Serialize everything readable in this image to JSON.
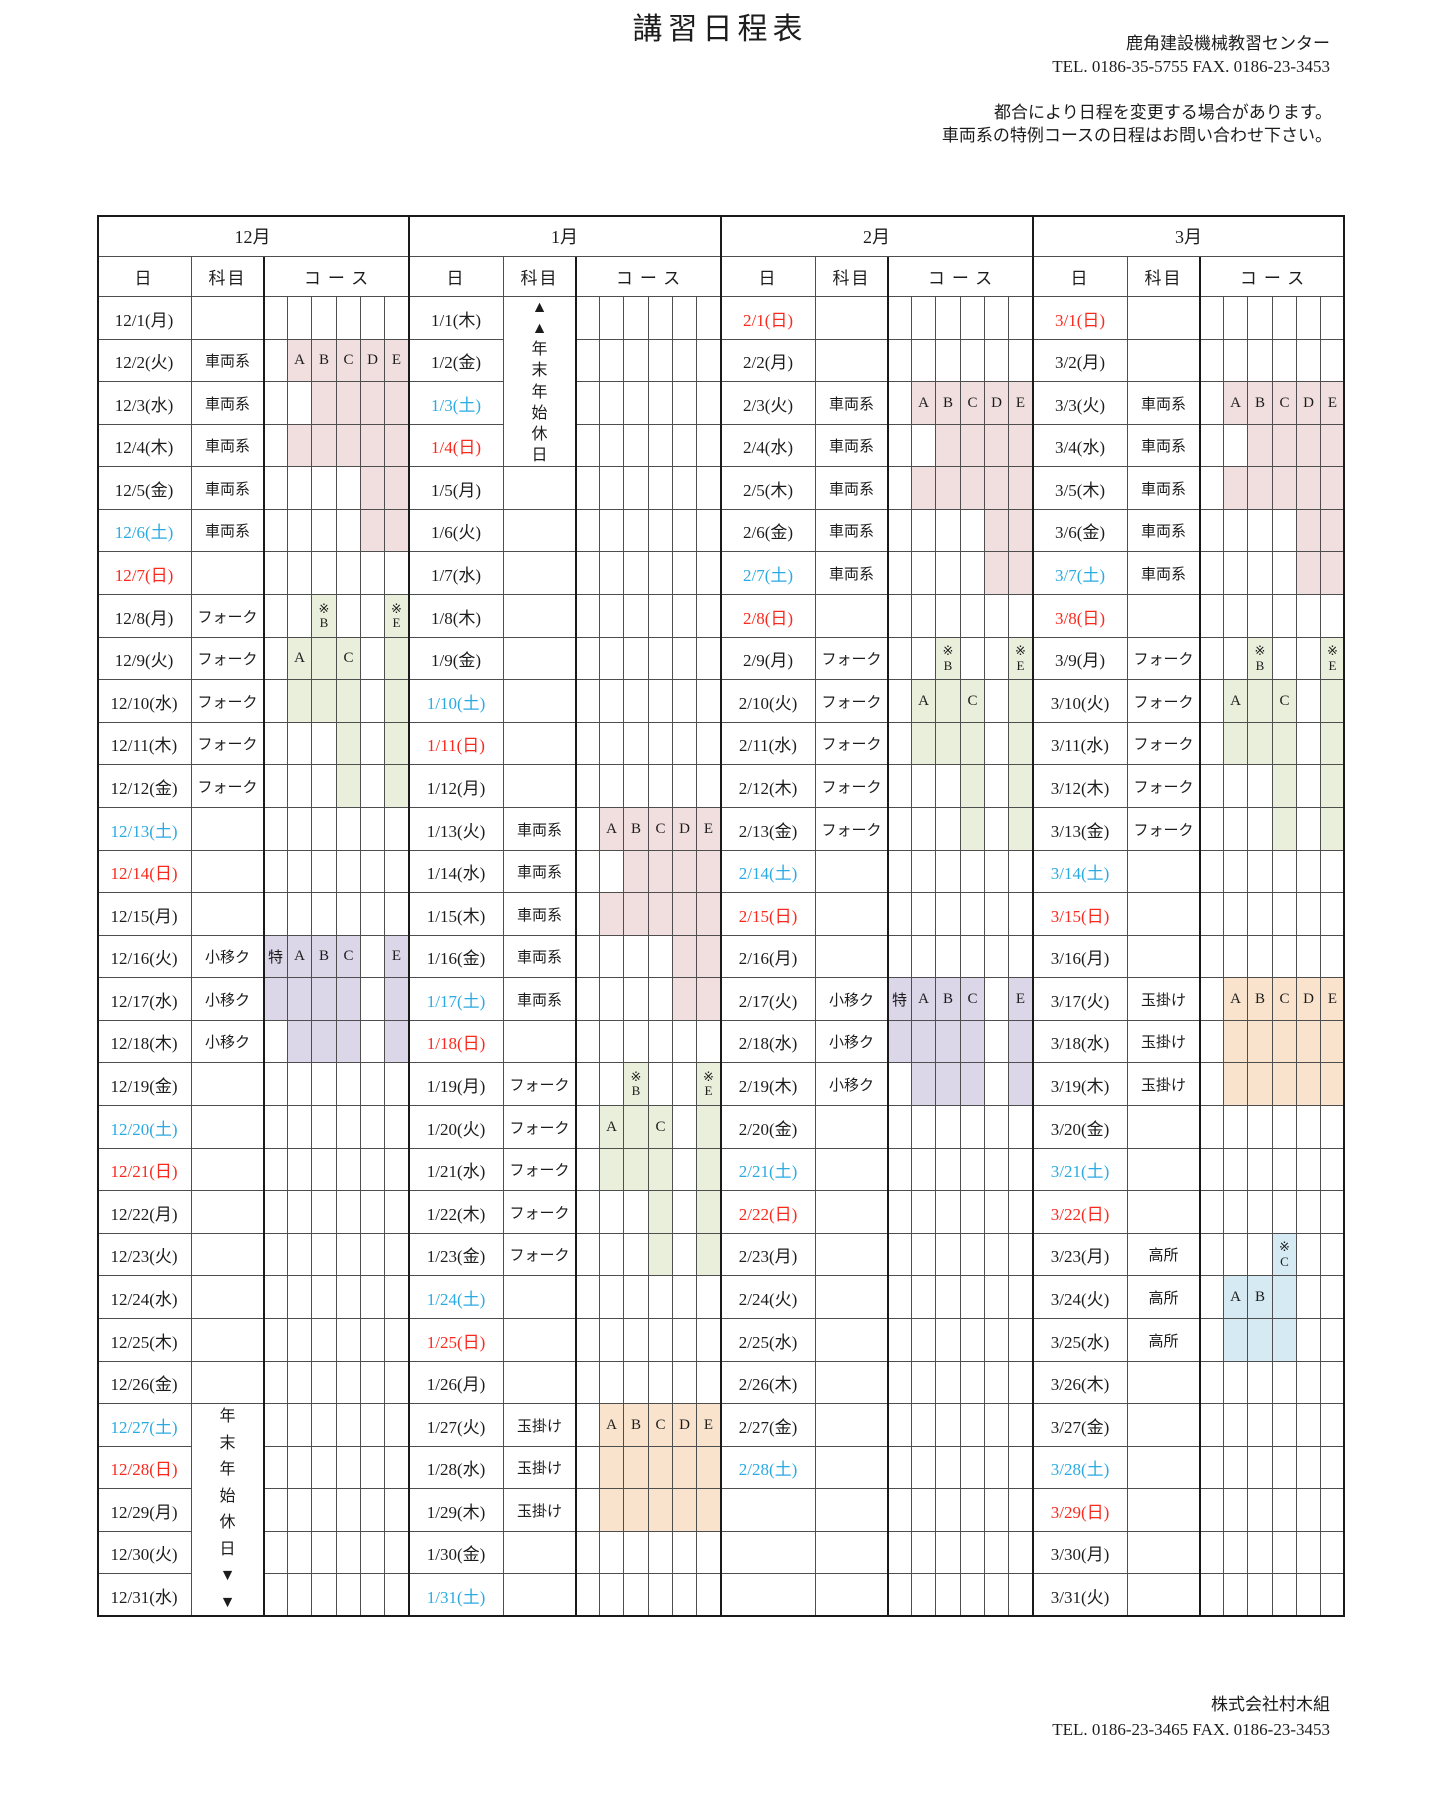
{
  "page": {
    "title": "講習日程表",
    "center": {
      "name": "鹿角建設機械教習センター",
      "tel": "TEL. 0186-35-5755  FAX. 0186-23-3453"
    },
    "notes": [
      "都合により日程を変更する場合があります。",
      "車両系の特例コースの日程はお問い合わせ下さい。"
    ],
    "footer": {
      "name": "株式会社村木組",
      "tel": "TEL. 0186-23-3465  FAX. 0186-23-3453"
    }
  },
  "table": {
    "headers": {
      "day": "日",
      "subject": "科目",
      "course": "コース"
    },
    "course_columns": [
      "特",
      "A",
      "B",
      "C",
      "D",
      "E"
    ],
    "colors": {
      "saturday": "#2aaae2",
      "sunday": "#fa291e",
      "weekday": "#1c1c1c",
      "vehicle": "#f1dede",
      "fork": "#eaefdb",
      "crane": "#dbd6e8",
      "rigging": "#fae3cd",
      "aerial": "#d5eaf3"
    },
    "months": [
      {
        "label": "12月",
        "dates": [
          "12/1(月)",
          "12/2(火)",
          "12/3(水)",
          "12/4(木)",
          "12/5(金)",
          "12/6(土)",
          "12/7(日)",
          "12/8(月)",
          "12/9(火)",
          "12/10(水)",
          "12/11(木)",
          "12/12(金)",
          "12/13(土)",
          "12/14(日)",
          "12/15(月)",
          "12/16(火)",
          "12/17(水)",
          "12/18(木)",
          "12/19(金)",
          "12/20(土)",
          "12/21(日)",
          "12/22(月)",
          "12/23(火)",
          "12/24(水)",
          "12/25(木)",
          "12/26(金)",
          "12/27(土)",
          "12/28(日)",
          "12/29(月)",
          "12/30(火)",
          "12/31(水)"
        ],
        "subjects": [
          {
            "from": 2,
            "to": 6,
            "label": "車両系"
          },
          {
            "from": 8,
            "to": 12,
            "label": "フォーク"
          },
          {
            "from": 16,
            "to": 18,
            "label": "小移ク"
          }
        ],
        "holiday_note": {
          "from": 27,
          "to": 31,
          "lines": [
            "年",
            "末",
            "年",
            "始",
            "休",
            "日",
            "▼",
            "▼"
          ]
        },
        "bands": [
          {
            "col": 1,
            "from": 2,
            "to": 4,
            "gaps": [
              3
            ],
            "label": "A",
            "label_day": 2,
            "color": "vehicle"
          },
          {
            "col": 2,
            "from": 2,
            "to": 4,
            "label": "B",
            "label_day": 2,
            "color": "vehicle"
          },
          {
            "col": 3,
            "from": 2,
            "to": 4,
            "label": "C",
            "label_day": 2,
            "color": "vehicle"
          },
          {
            "col": 4,
            "from": 2,
            "to": 6,
            "label": "D",
            "label_day": 2,
            "color": "vehicle"
          },
          {
            "col": 5,
            "from": 2,
            "to": 6,
            "label": "E",
            "label_day": 2,
            "color": "vehicle"
          },
          {
            "col": 2,
            "from": 8,
            "to": 10,
            "label": "※B",
            "label_day": 8,
            "color": "fork"
          },
          {
            "col": 5,
            "from": 8,
            "to": 12,
            "label": "※E",
            "label_day": 8,
            "color": "fork"
          },
          {
            "col": 1,
            "from": 9,
            "to": 10,
            "label": "A",
            "label_day": 9,
            "color": "fork"
          },
          {
            "col": 3,
            "from": 9,
            "to": 12,
            "label": "C",
            "label_day": 9,
            "color": "fork"
          },
          {
            "col": 0,
            "from": 16,
            "to": 17,
            "label": "特",
            "label_day": 16,
            "color": "crane"
          },
          {
            "col": 1,
            "from": 16,
            "to": 18,
            "label": "A",
            "label_day": 16,
            "color": "crane"
          },
          {
            "col": 2,
            "from": 16,
            "to": 18,
            "label": "B",
            "label_day": 16,
            "color": "crane"
          },
          {
            "col": 3,
            "from": 16,
            "to": 18,
            "label": "C",
            "label_day": 16,
            "color": "crane"
          },
          {
            "col": 5,
            "from": 16,
            "to": 18,
            "label": "E",
            "label_day": 16,
            "color": "crane"
          }
        ]
      },
      {
        "label": "1月",
        "dates": [
          "1/1(木)",
          "1/2(金)",
          "1/3(土)",
          "1/4(日)",
          "1/5(月)",
          "1/6(火)",
          "1/7(水)",
          "1/8(木)",
          "1/9(金)",
          "1/10(土)",
          "1/11(日)",
          "1/12(月)",
          "1/13(火)",
          "1/14(水)",
          "1/15(木)",
          "1/16(金)",
          "1/17(土)",
          "1/18(日)",
          "1/19(月)",
          "1/20(火)",
          "1/21(水)",
          "1/22(木)",
          "1/23(金)",
          "1/24(土)",
          "1/25(日)",
          "1/26(月)",
          "1/27(火)",
          "1/28(水)",
          "1/29(木)",
          "1/30(金)",
          "1/31(土)"
        ],
        "subjects": [
          {
            "from": 13,
            "to": 17,
            "label": "車両系"
          },
          {
            "from": 19,
            "to": 23,
            "label": "フォーク"
          },
          {
            "from": 27,
            "to": 29,
            "label": "玉掛け"
          }
        ],
        "holiday_note": {
          "from": 1,
          "to": 4,
          "lines": [
            "▲",
            "▲",
            "年",
            "末",
            "年",
            "始",
            "休",
            "日"
          ]
        },
        "bands": [
          {
            "col": 1,
            "from": 13,
            "to": 15,
            "gaps": [
              14
            ],
            "label": "A",
            "label_day": 13,
            "color": "vehicle"
          },
          {
            "col": 2,
            "from": 13,
            "to": 15,
            "label": "B",
            "label_day": 13,
            "color": "vehicle"
          },
          {
            "col": 3,
            "from": 13,
            "to": 15,
            "label": "C",
            "label_day": 13,
            "color": "vehicle"
          },
          {
            "col": 4,
            "from": 13,
            "to": 17,
            "label": "D",
            "label_day": 13,
            "color": "vehicle"
          },
          {
            "col": 5,
            "from": 13,
            "to": 17,
            "label": "E",
            "label_day": 13,
            "color": "vehicle"
          },
          {
            "col": 2,
            "from": 19,
            "to": 21,
            "label": "※B",
            "label_day": 19,
            "color": "fork"
          },
          {
            "col": 5,
            "from": 19,
            "to": 23,
            "label": "※E",
            "label_day": 19,
            "color": "fork"
          },
          {
            "col": 1,
            "from": 20,
            "to": 21,
            "label": "A",
            "label_day": 20,
            "color": "fork"
          },
          {
            "col": 3,
            "from": 20,
            "to": 23,
            "label": "C",
            "label_day": 20,
            "color": "fork"
          },
          {
            "col": 1,
            "from": 27,
            "to": 29,
            "label": "A",
            "label_day": 27,
            "color": "rigging"
          },
          {
            "col": 2,
            "from": 27,
            "to": 29,
            "label": "B",
            "label_day": 27,
            "color": "rigging"
          },
          {
            "col": 3,
            "from": 27,
            "to": 29,
            "label": "C",
            "label_day": 27,
            "color": "rigging"
          },
          {
            "col": 4,
            "from": 27,
            "to": 29,
            "label": "D",
            "label_day": 27,
            "color": "rigging"
          },
          {
            "col": 5,
            "from": 27,
            "to": 29,
            "label": "E",
            "label_day": 27,
            "color": "rigging"
          }
        ]
      },
      {
        "label": "2月",
        "dates": [
          "2/1(日)",
          "2/2(月)",
          "2/3(火)",
          "2/4(水)",
          "2/5(木)",
          "2/6(金)",
          "2/7(土)",
          "2/8(日)",
          "2/9(月)",
          "2/10(火)",
          "2/11(水)",
          "2/12(木)",
          "2/13(金)",
          "2/14(土)",
          "2/15(日)",
          "2/16(月)",
          "2/17(火)",
          "2/18(水)",
          "2/19(木)",
          "2/20(金)",
          "2/21(土)",
          "2/22(日)",
          "2/23(月)",
          "2/24(火)",
          "2/25(水)",
          "2/26(木)",
          "2/27(金)",
          "2/28(土)"
        ],
        "subjects": [
          {
            "from": 3,
            "to": 7,
            "label": "車両系"
          },
          {
            "from": 9,
            "to": 13,
            "label": "フォーク"
          },
          {
            "from": 17,
            "to": 19,
            "label": "小移ク"
          }
        ],
        "bands": [
          {
            "col": 1,
            "from": 3,
            "to": 5,
            "gaps": [
              4
            ],
            "label": "A",
            "label_day": 3,
            "color": "vehicle"
          },
          {
            "col": 2,
            "from": 3,
            "to": 5,
            "label": "B",
            "label_day": 3,
            "color": "vehicle"
          },
          {
            "col": 3,
            "from": 3,
            "to": 5,
            "label": "C",
            "label_day": 3,
            "color": "vehicle"
          },
          {
            "col": 4,
            "from": 3,
            "to": 7,
            "label": "D",
            "label_day": 3,
            "color": "vehicle"
          },
          {
            "col": 5,
            "from": 3,
            "to": 7,
            "label": "E",
            "label_day": 3,
            "color": "vehicle"
          },
          {
            "col": 2,
            "from": 9,
            "to": 11,
            "label": "※B",
            "label_day": 9,
            "color": "fork"
          },
          {
            "col": 5,
            "from": 9,
            "to": 13,
            "label": "※E",
            "label_day": 9,
            "color": "fork"
          },
          {
            "col": 1,
            "from": 10,
            "to": 11,
            "label": "A",
            "label_day": 10,
            "color": "fork"
          },
          {
            "col": 3,
            "from": 10,
            "to": 13,
            "label": "C",
            "label_day": 10,
            "color": "fork"
          },
          {
            "col": 0,
            "from": 17,
            "to": 18,
            "label": "特",
            "label_day": 17,
            "color": "crane"
          },
          {
            "col": 1,
            "from": 17,
            "to": 19,
            "label": "A",
            "label_day": 17,
            "color": "crane"
          },
          {
            "col": 2,
            "from": 17,
            "to": 19,
            "label": "B",
            "label_day": 17,
            "color": "crane"
          },
          {
            "col": 3,
            "from": 17,
            "to": 19,
            "label": "C",
            "label_day": 17,
            "color": "crane"
          },
          {
            "col": 5,
            "from": 17,
            "to": 19,
            "label": "E",
            "label_day": 17,
            "color": "crane"
          }
        ]
      },
      {
        "label": "3月",
        "dates": [
          "3/1(日)",
          "3/2(月)",
          "3/3(火)",
          "3/4(水)",
          "3/5(木)",
          "3/6(金)",
          "3/7(土)",
          "3/8(日)",
          "3/9(月)",
          "3/10(火)",
          "3/11(水)",
          "3/12(木)",
          "3/13(金)",
          "3/14(土)",
          "3/15(日)",
          "3/16(月)",
          "3/17(火)",
          "3/18(水)",
          "3/19(木)",
          "3/20(金)",
          "3/21(土)",
          "3/22(日)",
          "3/23(月)",
          "3/24(火)",
          "3/25(水)",
          "3/26(木)",
          "3/27(金)",
          "3/28(土)",
          "3/29(日)",
          "3/30(月)",
          "3/31(火)"
        ],
        "subjects": [
          {
            "from": 3,
            "to": 7,
            "label": "車両系"
          },
          {
            "from": 9,
            "to": 13,
            "label": "フォーク"
          },
          {
            "from": 17,
            "to": 19,
            "label": "玉掛け"
          },
          {
            "from": 23,
            "to": 25,
            "label": "高所"
          }
        ],
        "bands": [
          {
            "col": 1,
            "from": 3,
            "to": 5,
            "gaps": [
              4
            ],
            "label": "A",
            "label_day": 3,
            "color": "vehicle"
          },
          {
            "col": 2,
            "from": 3,
            "to": 5,
            "label": "B",
            "label_day": 3,
            "color": "vehicle"
          },
          {
            "col": 3,
            "from": 3,
            "to": 5,
            "label": "C",
            "label_day": 3,
            "color": "vehicle"
          },
          {
            "col": 4,
            "from": 3,
            "to": 7,
            "label": "D",
            "label_day": 3,
            "color": "vehicle"
          },
          {
            "col": 5,
            "from": 3,
            "to": 7,
            "label": "E",
            "label_day": 3,
            "color": "vehicle"
          },
          {
            "col": 2,
            "from": 9,
            "to": 11,
            "label": "※B",
            "label_day": 9,
            "color": "fork"
          },
          {
            "col": 5,
            "from": 9,
            "to": 13,
            "label": "※E",
            "label_day": 9,
            "color": "fork"
          },
          {
            "col": 1,
            "from": 10,
            "to": 11,
            "label": "A",
            "label_day": 10,
            "color": "fork"
          },
          {
            "col": 3,
            "from": 10,
            "to": 13,
            "label": "C",
            "label_day": 10,
            "color": "fork"
          },
          {
            "col": 1,
            "from": 17,
            "to": 19,
            "label": "A",
            "label_day": 17,
            "color": "rigging"
          },
          {
            "col": 2,
            "from": 17,
            "to": 19,
            "label": "B",
            "label_day": 17,
            "color": "rigging"
          },
          {
            "col": 3,
            "from": 17,
            "to": 19,
            "label": "C",
            "label_day": 17,
            "color": "rigging"
          },
          {
            "col": 4,
            "from": 17,
            "to": 19,
            "label": "D",
            "label_day": 17,
            "color": "rigging"
          },
          {
            "col": 5,
            "from": 17,
            "to": 19,
            "label": "E",
            "label_day": 17,
            "color": "rigging"
          },
          {
            "col": 3,
            "from": 23,
            "to": 25,
            "label": "※C",
            "label_day": 23,
            "color": "aerial"
          },
          {
            "col": 1,
            "from": 24,
            "to": 25,
            "label": "A",
            "label_day": 24,
            "color": "aerial"
          },
          {
            "col": 2,
            "from": 24,
            "to": 25,
            "label": "B",
            "label_day": 24,
            "color": "aerial"
          }
        ]
      }
    ]
  }
}
